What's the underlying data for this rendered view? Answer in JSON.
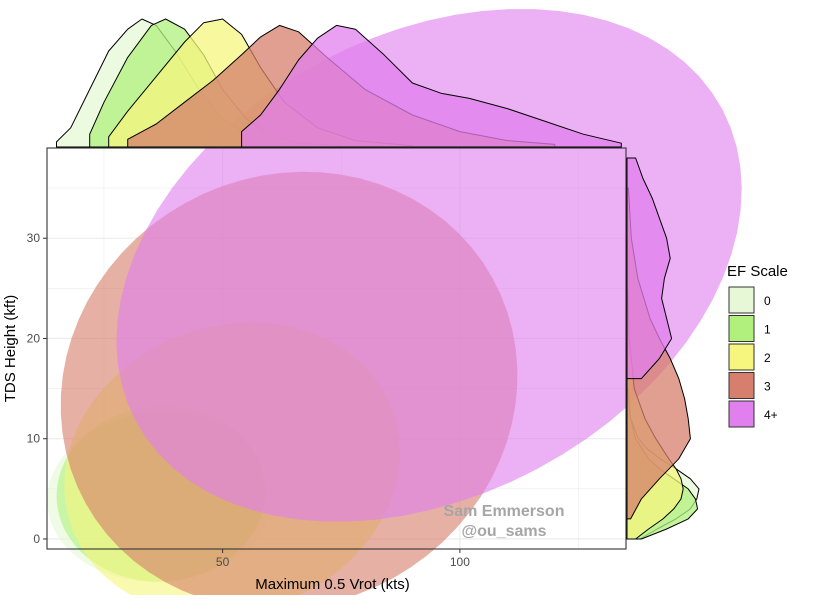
{
  "chart_data": {
    "type": "scatter",
    "subtype": "confidence-ellipses with marginal density plots",
    "xlabel": "Maximum 0.5 Vrot (kts)",
    "ylabel": "TDS Height (kft)",
    "xlim": [
      13,
      135
    ],
    "ylim": [
      -1,
      39
    ],
    "xticks": [
      50,
      100
    ],
    "yticks": [
      0,
      10,
      20,
      30
    ],
    "grid": true,
    "legend": {
      "title": "EF Scale",
      "position": "right"
    },
    "watermark": [
      "Sam Emmerson",
      "@ou_sams"
    ],
    "series": [
      {
        "name": "0",
        "color": "#e6f8d6",
        "ellipse": {
          "center": [
            37,
            4.2
          ],
          "semi_axes": [
            24,
            3.7
          ],
          "angle_deg": 4
        },
        "x_density": [
          [
            15,
            0.04
          ],
          [
            18,
            0.15
          ],
          [
            22,
            0.45
          ],
          [
            26,
            0.75
          ],
          [
            30,
            0.92
          ],
          [
            33,
            1.0
          ],
          [
            36,
            0.95
          ],
          [
            40,
            0.75
          ],
          [
            45,
            0.45
          ],
          [
            50,
            0.22
          ],
          [
            55,
            0.1
          ],
          [
            60,
            0.04
          ],
          [
            68,
            0.01
          ]
        ],
        "y_density": [
          [
            0,
            0.18
          ],
          [
            1,
            0.42
          ],
          [
            2,
            0.68
          ],
          [
            3,
            0.88
          ],
          [
            4,
            0.97
          ],
          [
            5,
            1.0
          ],
          [
            6,
            0.88
          ],
          [
            7,
            0.68
          ],
          [
            8,
            0.46
          ],
          [
            9,
            0.28
          ],
          [
            10,
            0.16
          ],
          [
            12,
            0.05
          ],
          [
            15,
            0.01
          ]
        ]
      },
      {
        "name": "1",
        "color": "#b2f07e",
        "ellipse": {
          "center": [
            37,
            4.5
          ],
          "semi_axes": [
            22,
            3.8
          ],
          "angle_deg": 4
        },
        "x_density": [
          [
            22,
            0.1
          ],
          [
            25,
            0.35
          ],
          [
            30,
            0.7
          ],
          [
            35,
            0.95
          ],
          [
            38,
            1.0
          ],
          [
            42,
            0.92
          ],
          [
            46,
            0.72
          ],
          [
            50,
            0.45
          ],
          [
            55,
            0.22
          ],
          [
            60,
            0.1
          ],
          [
            66,
            0.03
          ],
          [
            75,
            0.01
          ]
        ],
        "y_density": [
          [
            0,
            0.2
          ],
          [
            1,
            0.55
          ],
          [
            2,
            0.85
          ],
          [
            3,
            0.98
          ],
          [
            4,
            0.95
          ],
          [
            5,
            0.85
          ],
          [
            6,
            0.65
          ],
          [
            7,
            0.45
          ],
          [
            8,
            0.3
          ],
          [
            10,
            0.12
          ],
          [
            12,
            0.05
          ],
          [
            15,
            0.01
          ]
        ]
      },
      {
        "name": "2",
        "color": "#f6f67e",
        "ellipse": {
          "center": [
            52,
            7
          ],
          "semi_axes": [
            36,
            6.2
          ],
          "angle_deg": 20
        },
        "x_density": [
          [
            26,
            0.08
          ],
          [
            30,
            0.28
          ],
          [
            36,
            0.55
          ],
          [
            42,
            0.82
          ],
          [
            46,
            0.97
          ],
          [
            50,
            1.0
          ],
          [
            54,
            0.88
          ],
          [
            58,
            0.62
          ],
          [
            63,
            0.35
          ],
          [
            70,
            0.15
          ],
          [
            78,
            0.05
          ],
          [
            90,
            0.01
          ]
        ],
        "y_density": [
          [
            0,
            0.12
          ],
          [
            1,
            0.3
          ],
          [
            2,
            0.5
          ],
          [
            3,
            0.65
          ],
          [
            4,
            0.75
          ],
          [
            5,
            0.78
          ],
          [
            6,
            0.75
          ],
          [
            7,
            0.68
          ],
          [
            8,
            0.58
          ],
          [
            10,
            0.4
          ],
          [
            12,
            0.25
          ],
          [
            15,
            0.1
          ],
          [
            20,
            0.03
          ],
          [
            25,
            0.01
          ]
        ]
      },
      {
        "name": "3",
        "color": "#d67f6c",
        "ellipse": {
          "center": [
            64,
            14.8
          ],
          "semi_axes": [
            49,
            9.3
          ],
          "angle_deg": 29
        },
        "x_density": [
          [
            30,
            0.06
          ],
          [
            36,
            0.18
          ],
          [
            42,
            0.35
          ],
          [
            48,
            0.52
          ],
          [
            54,
            0.72
          ],
          [
            58,
            0.86
          ],
          [
            62,
            0.95
          ],
          [
            66,
            0.9
          ],
          [
            72,
            0.7
          ],
          [
            80,
            0.45
          ],
          [
            90,
            0.25
          ],
          [
            100,
            0.12
          ],
          [
            110,
            0.05
          ],
          [
            120,
            0.02
          ]
        ],
        "y_density": [
          [
            2,
            0.05
          ],
          [
            4,
            0.2
          ],
          [
            6,
            0.45
          ],
          [
            8,
            0.72
          ],
          [
            10,
            0.88
          ],
          [
            12,
            0.85
          ],
          [
            14,
            0.8
          ],
          [
            16,
            0.72
          ],
          [
            18,
            0.6
          ],
          [
            20,
            0.45
          ],
          [
            22,
            0.32
          ],
          [
            26,
            0.15
          ],
          [
            30,
            0.06
          ],
          [
            35,
            0.02
          ]
        ]
      },
      {
        "name": "4+",
        "color": "#e17fee",
        "ellipse": {
          "center": [
            93.5,
            27.3
          ],
          "semi_axes": [
            70,
            10
          ],
          "angle_deg": 28
        },
        "x_density": [
          [
            54,
            0.12
          ],
          [
            58,
            0.25
          ],
          [
            62,
            0.45
          ],
          [
            66,
            0.68
          ],
          [
            70,
            0.85
          ],
          [
            74,
            0.95
          ],
          [
            78,
            0.92
          ],
          [
            84,
            0.72
          ],
          [
            90,
            0.5
          ],
          [
            96,
            0.42
          ],
          [
            102,
            0.38
          ],
          [
            110,
            0.3
          ],
          [
            118,
            0.2
          ],
          [
            126,
            0.1
          ],
          [
            134,
            0.03
          ]
        ],
        "y_density": [
          [
            16,
            0.2
          ],
          [
            18,
            0.45
          ],
          [
            20,
            0.62
          ],
          [
            22,
            0.55
          ],
          [
            24,
            0.48
          ],
          [
            26,
            0.52
          ],
          [
            28,
            0.6
          ],
          [
            30,
            0.55
          ],
          [
            32,
            0.45
          ],
          [
            34,
            0.35
          ],
          [
            36,
            0.22
          ],
          [
            38,
            0.12
          ]
        ]
      }
    ]
  }
}
